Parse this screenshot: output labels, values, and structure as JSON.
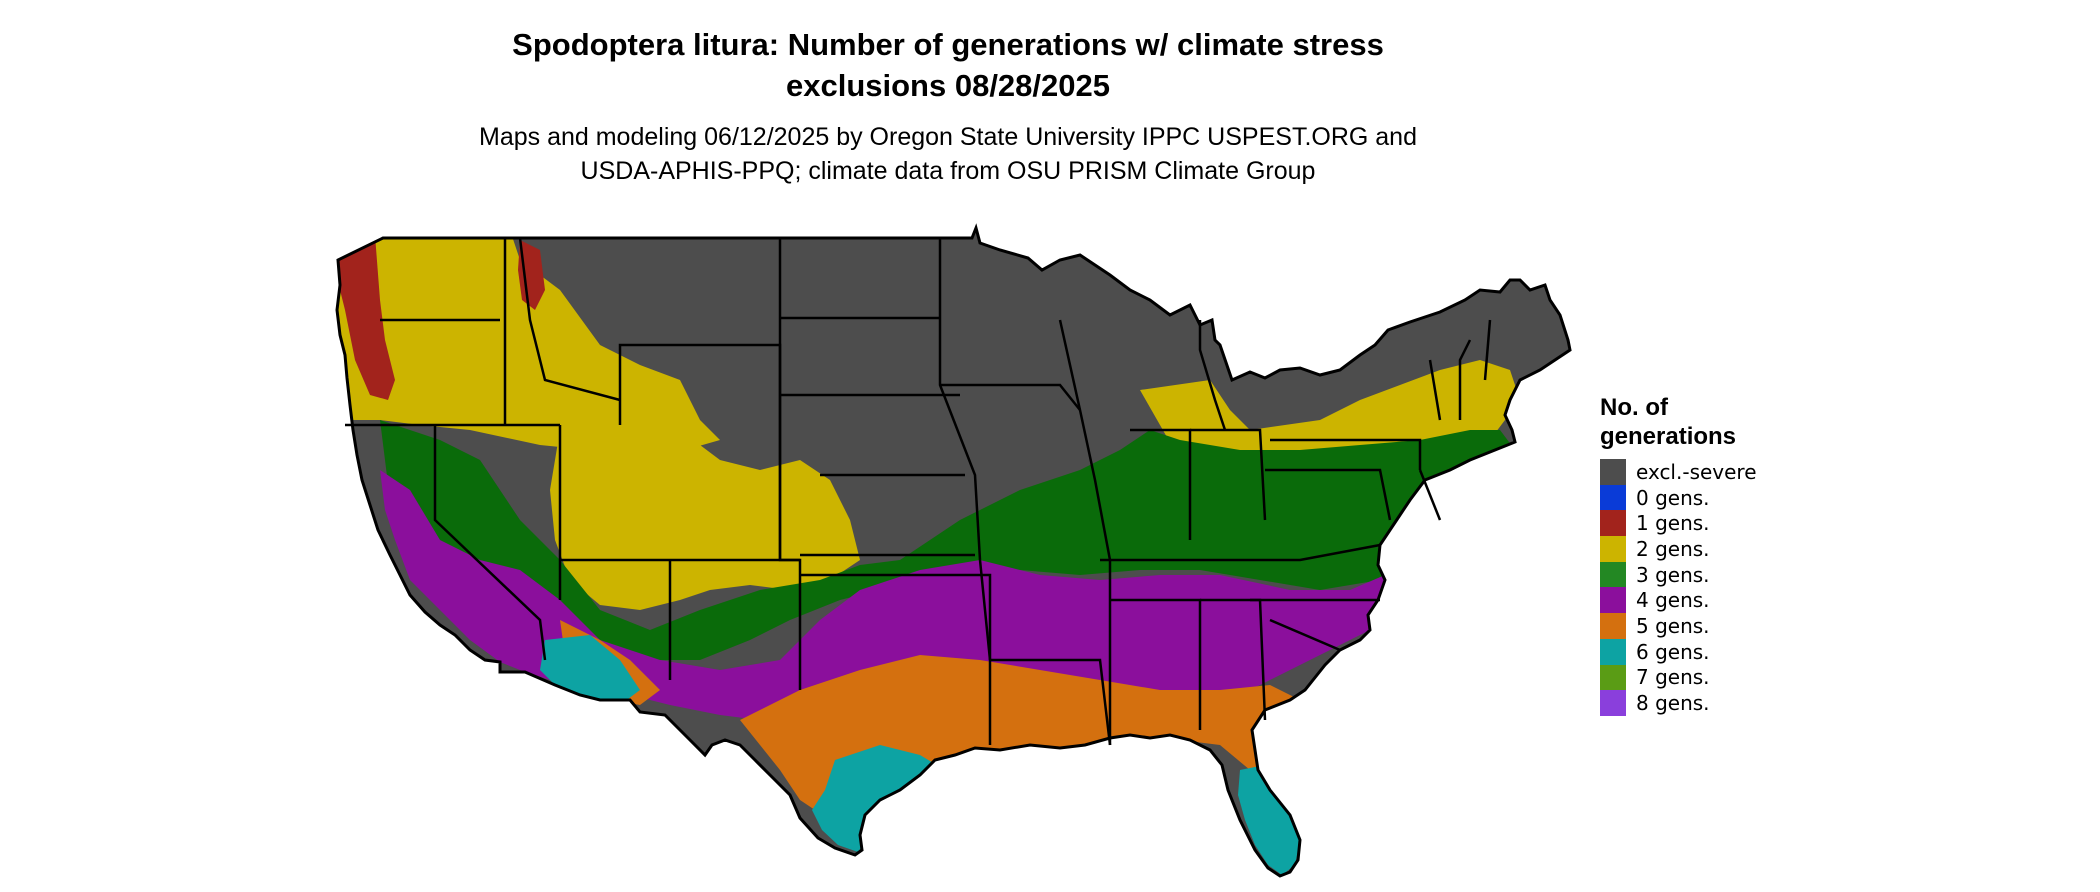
{
  "map": {
    "title_line1": "Spodoptera litura: Number of generations w/ climate stress",
    "title_line2": "exclusions 08/28/2025",
    "subtitle_line1": "Maps and modeling 06/12/2025 by Oregon State University IPPC USPEST.ORG and",
    "subtitle_line2": "USDA-APHIS-PPQ; climate data from OSU PRISM Climate Group",
    "region": "contiguous United States",
    "colors": {
      "outline": "#000000",
      "background": "#ffffff"
    }
  },
  "legend": {
    "title_line1": "No. of",
    "title_line2": "generations",
    "items": [
      {
        "label": "excl.-severe",
        "color": "#4d4d4d"
      },
      {
        "label": "0 gens.",
        "color": "#0a3bd7"
      },
      {
        "label": "1 gens.",
        "color": "#a2231c"
      },
      {
        "label": "2 gens.",
        "color": "#ccb400"
      },
      {
        "label": "3 gens.",
        "color": "#238823"
      },
      {
        "label": "4 gens.",
        "color": "#8b0f9c"
      },
      {
        "label": "5 gens.",
        "color": "#d4700f"
      },
      {
        "label": "6 gens.",
        "color": "#0da3a3"
      },
      {
        "label": "7 gens.",
        "color": "#5a9c15"
      },
      {
        "label": "8 gens.",
        "color": "#8a3fdc"
      }
    ]
  }
}
